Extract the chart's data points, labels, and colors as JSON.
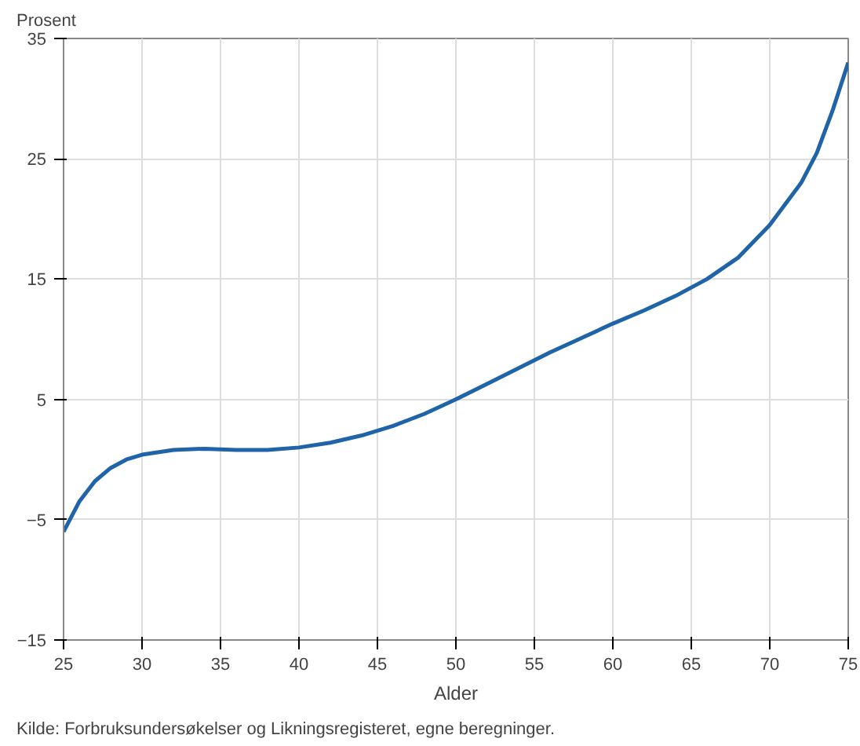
{
  "chart_data": {
    "type": "line",
    "ylabel": "Prosent",
    "xlabel": "Alder",
    "annotations": [
      "Kilde: Forbruksundersøkelser og Likningsregisteret, egne beregninger."
    ],
    "x": [
      25,
      26,
      27,
      28,
      29,
      30,
      32,
      34,
      36,
      38,
      40,
      42,
      44,
      46,
      48,
      50,
      52,
      54,
      56,
      58,
      60,
      62,
      64,
      66,
      68,
      70,
      72,
      73,
      74,
      75
    ],
    "series": [
      {
        "color": "#1f64a8",
        "values": [
          -6,
          -3.5,
          -1.8,
          -0.7,
          0,
          0.4,
          0.8,
          0.9,
          0.8,
          0.8,
          1.0,
          1.4,
          2.0,
          2.8,
          3.8,
          5.0,
          6.3,
          7.6,
          8.9,
          10.1,
          11.3,
          12.4,
          13.6,
          15.0,
          16.8,
          19.5,
          23.0,
          25.5,
          29,
          33
        ]
      }
    ],
    "xlim": [
      25,
      75
    ],
    "ylim": [
      -15,
      35
    ],
    "xticks": [
      25,
      30,
      35,
      40,
      45,
      50,
      55,
      60,
      65,
      70,
      75
    ],
    "yticks": [
      -15,
      -5,
      5,
      15,
      25,
      35
    ],
    "grid": true,
    "marker": "none",
    "line_style": "solid"
  }
}
